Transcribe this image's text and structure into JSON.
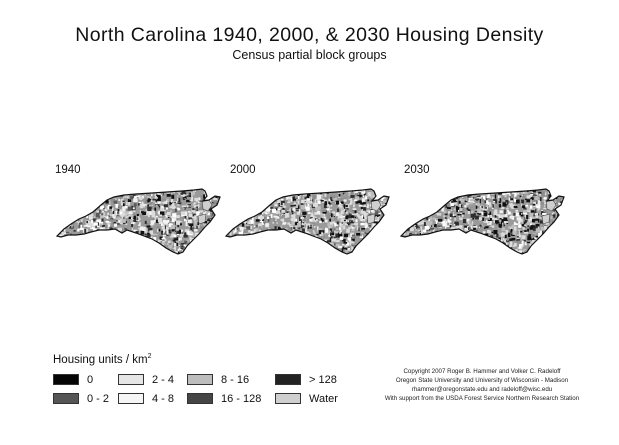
{
  "title": "North Carolina 1940, 2000, & 2030 Housing Density",
  "subtitle": "Census partial block groups",
  "maps": [
    {
      "year": "1940",
      "density": 0.3
    },
    {
      "year": "2000",
      "density": 0.48
    },
    {
      "year": "2030",
      "density": 0.58
    }
  ],
  "legend": {
    "title_prefix": "Housing units / km",
    "title_sup": "2",
    "items": [
      {
        "label": "0",
        "color": "#050505"
      },
      {
        "label": "0 - 2",
        "color": "#555555"
      },
      {
        "label": "2 - 4",
        "color": "#e6e6e6"
      },
      {
        "label": "4 - 8",
        "color": "#f6f6f6"
      },
      {
        "label": "8 - 16",
        "color": "#bdbdbd"
      },
      {
        "label": "16 - 128",
        "color": "#454545"
      },
      {
        "label": "> 128",
        "color": "#222222"
      },
      {
        "label": "Water",
        "color": "#cfcfcf"
      }
    ]
  },
  "credits": [
    "Copyright 2007 Roger B. Hammer and Volker C. Radeloff",
    "Oregon State University and University of Wisconsin - Madison",
    "rhammer@oregonstate.edu and radeloff@wisc.edu",
    "With support from the USDA Forest Service Northern Research Station"
  ]
}
